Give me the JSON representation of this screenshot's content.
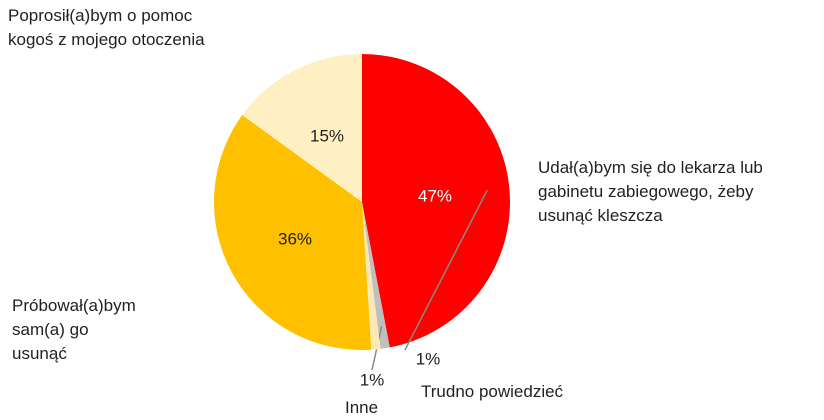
{
  "chart_data": {
    "type": "pie",
    "categories": [
      "Udał(a)bym się do lekarza lub gabinetu zabiegowego, żeby usunąć kleszcza",
      "Trudno powiedzieć",
      "Inne",
      "Próbował(a)bym sam(a) go usunąć",
      "Poprosił(a)bym o pomoc kogoś z mojego otoczenia"
    ],
    "values": [
      47,
      1,
      1,
      36,
      15
    ],
    "value_labels": [
      "47%",
      "1%",
      "1%",
      "36%",
      "15%"
    ],
    "colors": [
      "#ff0000",
      "#bfbfbf",
      "#fde9b6",
      "#ffc000",
      "#fff0c4"
    ]
  }
}
